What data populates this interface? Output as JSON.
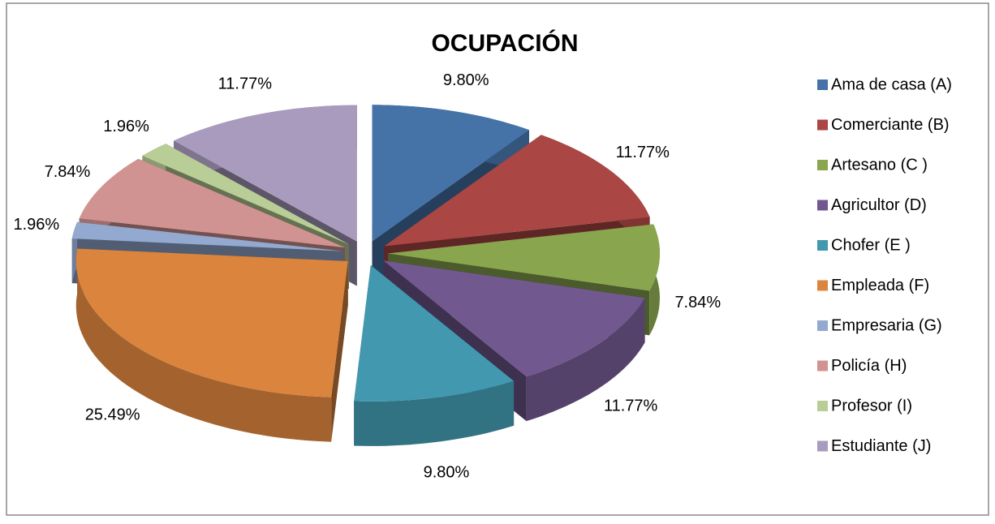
{
  "chart_data": {
    "type": "pie3d",
    "title": "OCUPACIÓN",
    "categories": [
      "Ama de casa  (A)",
      "Comerciante  (B)",
      "Artesano  (C )",
      "Agricultor  (D)",
      "Chofer  (E )",
      "Empleada  (F)",
      "Empresaria   (G)",
      "Policía  (H)",
      "Profesor  (I)",
      "Estudiante  (J)"
    ],
    "values": [
      9.8,
      11.77,
      7.84,
      11.77,
      9.8,
      25.49,
      1.96,
      7.84,
      1.96,
      11.77
    ],
    "value_labels": [
      "9.80%",
      "11.77%",
      "7.84%",
      "11.77%",
      "9.80%",
      "25.49%",
      "1.96%",
      "7.84%",
      "1.96%",
      "11.77%"
    ],
    "colors": [
      "#4572a7",
      "#aa4643",
      "#89a54e",
      "#71588f",
      "#4198af",
      "#db843d",
      "#93a9cf",
      "#d19392",
      "#b9cd96",
      "#a99bbd"
    ],
    "legend": "right"
  }
}
